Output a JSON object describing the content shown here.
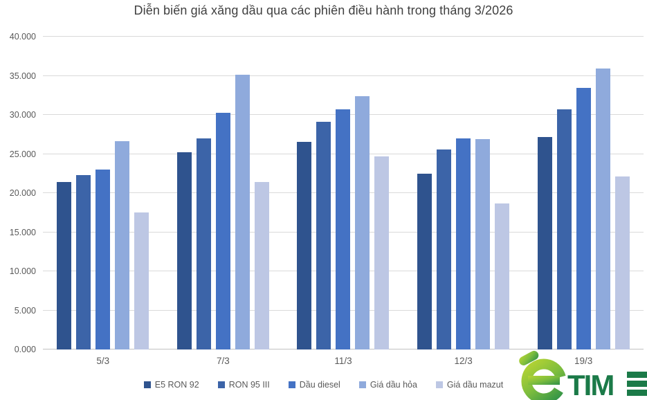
{
  "title": "Diễn biến giá xăng dầu qua các phiên điều hành trong tháng 3/2026",
  "chart_data": {
    "type": "bar",
    "title": "Diễn biến giá xăng dầu qua các phiên điều hành trong tháng 3/2026",
    "categories": [
      "5/3",
      "7/3",
      "11/3",
      "12/3",
      "19/3"
    ],
    "series": [
      {
        "name": "E5 RON 92",
        "color": "#2F538E",
        "values": [
          21400,
          25200,
          26550,
          22500,
          27200
        ]
      },
      {
        "name": "RON 95 III",
        "color": "#3C64A8",
        "values": [
          22300,
          27000,
          29100,
          25550,
          30700
        ]
      },
      {
        "name": "Dầu diesel",
        "color": "#4472C4",
        "values": [
          23050,
          30300,
          30700,
          27000,
          33450
        ]
      },
      {
        "name": "Giá dầu hỏa",
        "color": "#8FAADC",
        "values": [
          26600,
          35100,
          32400,
          26900,
          35900
        ]
      },
      {
        "name": "Giá dầu mazut",
        "color": "#BDC7E4",
        "values": [
          17500,
          21400,
          24700,
          18650,
          22100
        ]
      }
    ],
    "xlabel": "",
    "ylabel": "",
    "ylim": [
      0,
      40000
    ],
    "ytick_step": 5000,
    "ytick_labels": [
      "0.000",
      "5.000",
      "10.000",
      "15.000",
      "20.000",
      "25.000",
      "30.000",
      "35.000",
      "40.000"
    ],
    "grid": true,
    "legend_position": "bottom"
  },
  "logo": {
    "time_text": "TIME",
    "green_light": "#A9CE39",
    "green_mid": "#5BAD41",
    "green_dark": "#1B7A48"
  }
}
